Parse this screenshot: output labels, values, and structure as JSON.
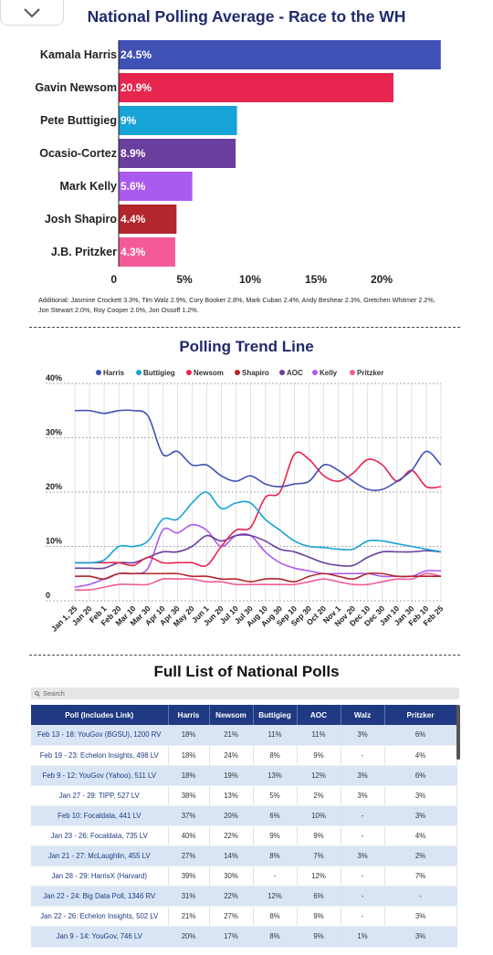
{
  "bar_section": {
    "title": "National Polling Average - Race to the WH",
    "additional_note": "Additional: Jasmine Crockett 3.3%, Tim Walz 2.9%, Cory Booker 2.8%, Mark Cuban 2.4%, Andy Beshear 2.3%, Gretchen Whitmer 2.2%, Jon Stewart 2.0%, Roy Cooper 2.0%, Jon Ossoff 1.2%."
  },
  "trend_section": {
    "title": "Polling Trend Line"
  },
  "table_section": {
    "title": "Full List of National Polls",
    "search_placeholder": "Search",
    "headers": [
      "Poll (Includes Link)",
      "Harris",
      "Newsom",
      "Buttigieg",
      "AOC",
      "Walz",
      "Pritzker"
    ],
    "rows": [
      [
        "Feb 13 - 18: YouGov (BGSU), 1200 RV",
        "18%",
        "21%",
        "11%",
        "11%",
        "3%",
        "6%"
      ],
      [
        "Feb 19 - 23: Echelon Insights, 498 LV",
        "18%",
        "24%",
        "8%",
        "9%",
        "-",
        "4%"
      ],
      [
        "Feb 9 - 12: YouGov (Yahoo), 511 LV",
        "18%",
        "19%",
        "13%",
        "12%",
        "3%",
        "6%"
      ],
      [
        "Jan 27 - 29: TIPP, 527 LV",
        "38%",
        "13%",
        "5%",
        "2%",
        "3%",
        "3%"
      ],
      [
        "Feb 10: Focaldata, 441 LV",
        "37%",
        "20%",
        "6%",
        "10%",
        "-",
        "3%"
      ],
      [
        "Jan 23 - 26: Focaldata, 735 LV",
        "40%",
        "22%",
        "9%",
        "9%",
        "-",
        "4%"
      ],
      [
        "Jan 21 - 27: McLaughlin, 455 LV",
        "27%",
        "14%",
        "8%",
        "7%",
        "3%",
        "2%"
      ],
      [
        "Jan 28 - 29: HarrisX (Harvard)",
        "39%",
        "30%",
        "-",
        "12%",
        "-",
        "7%"
      ],
      [
        "Jan 22 - 24: Big Data Poll, 1346 RV",
        "31%",
        "22%",
        "12%",
        "6%",
        "-",
        "-"
      ],
      [
        "Jan 22 - 26: Echelon Insights, 502 LV",
        "21%",
        "27%",
        "8%",
        "9%",
        "-",
        "3%"
      ],
      [
        "Jan 9 - 14: YouGov, 746 LV",
        "20%",
        "17%",
        "8%",
        "9%",
        "1%",
        "3%"
      ]
    ]
  },
  "chart_data": [
    {
      "type": "bar",
      "orientation": "horizontal",
      "title": "National Polling Average - Race to the WH",
      "categories": [
        "Kamala Harris",
        "Gavin Newsom",
        "Pete Buttigieg",
        "Ocasio-Cortez",
        "Mark Kelly",
        "Josh Shapiro",
        "J.B. Pritzker"
      ],
      "values": [
        24.5,
        20.9,
        9,
        8.9,
        5.6,
        4.4,
        4.3
      ],
      "value_labels": [
        "24.5%",
        "20.9%",
        "9%",
        "8.9%",
        "5.6%",
        "4.4%",
        "4.3%"
      ],
      "colors": [
        "#3f51b5",
        "#e8254f",
        "#16a3d6",
        "#6a3e9c",
        "#a95aef",
        "#b3262c",
        "#f45a98"
      ],
      "x_ticks": [
        0,
        5,
        10,
        15,
        20
      ],
      "x_tick_labels": [
        "0",
        "5%",
        "10%",
        "15%",
        "20%"
      ],
      "xlim": [
        0,
        25
      ]
    },
    {
      "type": "line",
      "title": "Polling Trend Line",
      "ylim": [
        0,
        40
      ],
      "y_ticks": [
        0,
        10,
        20,
        30,
        40
      ],
      "y_tick_labels": [
        "0",
        "10%",
        "20%",
        "30%",
        "40%"
      ],
      "x": [
        "Jan 1, 25",
        "Jan 20",
        "Feb 1",
        "Feb 20",
        "Mar 10",
        "Mar 30",
        "Apr 10",
        "Apr 30",
        "May 20",
        "Jun 1",
        "Jun 20",
        "Jul 10",
        "Jul 30",
        "Aug 10",
        "Aug 30",
        "Sep 10",
        "Sep 30",
        "Oct 20",
        "Nov 1",
        "Nov 20",
        "Dec 10",
        "Dec 30",
        "Jan 10",
        "Jan 30",
        "Feb 10",
        "Feb 25"
      ],
      "legend_position": "top",
      "grid": true,
      "series": [
        {
          "name": "Harris",
          "color": "#3f51b5",
          "values": [
            35,
            35,
            34.5,
            35,
            35,
            34,
            27,
            27.5,
            25,
            25,
            23,
            22,
            23,
            21.5,
            21,
            21.5,
            22,
            25,
            24,
            22,
            20.5,
            20.5,
            22,
            24,
            27.5,
            25
          ]
        },
        {
          "name": "Buttigieg",
          "color": "#16a3d6",
          "values": [
            7,
            7,
            7.5,
            10,
            10,
            11,
            15,
            15,
            18,
            20,
            17,
            18,
            18,
            15,
            13,
            11,
            10,
            9.8,
            9.5,
            9.5,
            11,
            11,
            10.5,
            10,
            9.5,
            9
          ]
        },
        {
          "name": "Newsom",
          "color": "#e8254f",
          "values": [
            7,
            7,
            7,
            7,
            6.5,
            8,
            7,
            7,
            7,
            6.5,
            10,
            13,
            13.5,
            19,
            20,
            27,
            26,
            23,
            22,
            23.5,
            26,
            25,
            22,
            24,
            21,
            21
          ]
        },
        {
          "name": "Shapiro",
          "color": "#b3262c",
          "values": [
            4.5,
            4.5,
            4,
            5,
            5,
            5,
            5,
            5,
            4.5,
            4.5,
            4,
            4,
            3.5,
            4,
            4,
            3.5,
            4.5,
            5,
            4.5,
            4,
            5,
            5,
            4.5,
            4.5,
            4.5,
            4.5
          ]
        },
        {
          "name": "AOC",
          "color": "#6a3e9c",
          "values": [
            6,
            6,
            6,
            7,
            7,
            8,
            9,
            9,
            10,
            12,
            11,
            12,
            12,
            11,
            9.5,
            9,
            8,
            7,
            6.5,
            6.5,
            8,
            9,
            9,
            9,
            9.2,
            9
          ]
        },
        {
          "name": "Kelly",
          "color": "#a95aef",
          "values": [
            2.5,
            3,
            4,
            5,
            5,
            6,
            13,
            12.5,
            14,
            13,
            10,
            12,
            12,
            9,
            7,
            6,
            5.5,
            5,
            5,
            5,
            5,
            4.5,
            4.5,
            4.5,
            5.5,
            5.5
          ]
        },
        {
          "name": "Pritzker",
          "color": "#f45a98",
          "values": [
            2,
            2,
            2.5,
            3,
            3,
            3,
            4,
            4,
            4,
            3.5,
            3.5,
            3,
            3,
            3,
            3,
            3,
            3.5,
            4,
            3.5,
            3,
            3,
            3.5,
            4,
            4,
            5,
            4.5
          ]
        }
      ]
    }
  ]
}
